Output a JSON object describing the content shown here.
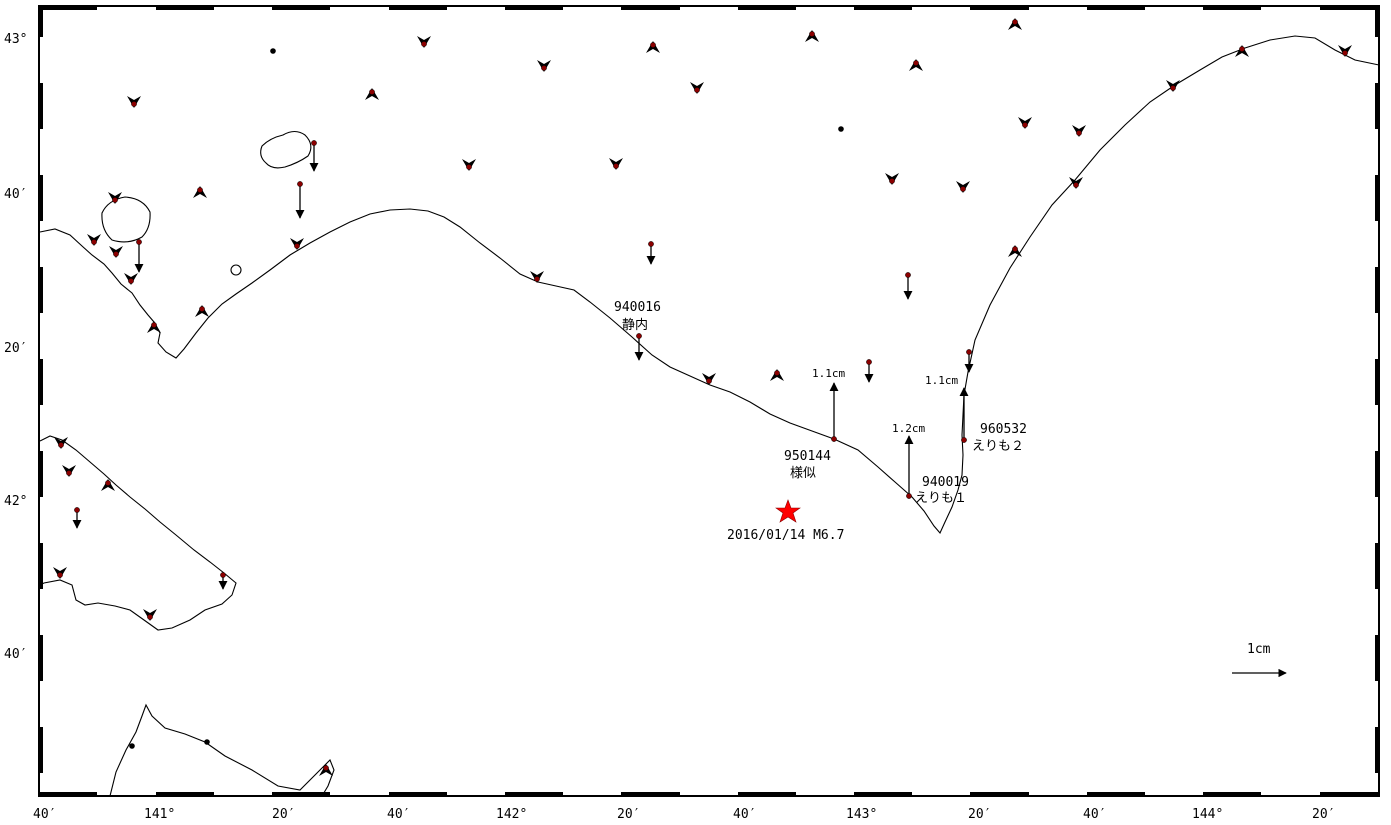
{
  "map": {
    "lat_labels": [
      "43°",
      "40′",
      "20′",
      "42°",
      "40′"
    ],
    "lon_labels": [
      "40′",
      "141°",
      "20′",
      "40′",
      "142°",
      "20′",
      "40′",
      "143°",
      "20′",
      "40′",
      "144°",
      "20′"
    ]
  },
  "stations": [
    {
      "id": "940016",
      "name": "静内"
    },
    {
      "id": "950144",
      "name": "様似",
      "vector": "1.1cm"
    },
    {
      "id": "940019",
      "name": "えりも１",
      "vector": "1.2cm"
    },
    {
      "id": "960532",
      "name": "えりも２",
      "vector": "1.1cm"
    }
  ],
  "earthquake": {
    "label": "2016/01/14 M6.7",
    "color": "#ff0000"
  },
  "scale": {
    "label": "1cm"
  },
  "colors": {
    "station": "#8b0000",
    "coast": "#000000",
    "epicenter": "#ff0000"
  }
}
